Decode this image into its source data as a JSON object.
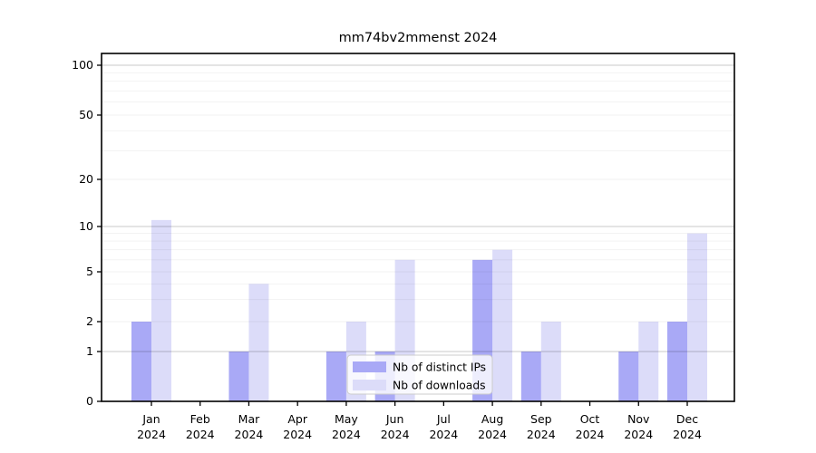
{
  "chart_data": {
    "type": "bar",
    "title": "mm74bv2mmenst 2024",
    "categories": [
      "Jan",
      "Feb",
      "Mar",
      "Apr",
      "May",
      "Jun",
      "Jul",
      "Aug",
      "Sep",
      "Oct",
      "Nov",
      "Dec"
    ],
    "x_tick_second_line": "2024",
    "series": [
      {
        "name": "Nb of distinct IPs",
        "color": "#a9a9f6",
        "values": [
          2,
          0,
          1,
          0,
          1,
          1,
          0,
          6,
          1,
          0,
          1,
          2
        ]
      },
      {
        "name": "Nb of downloads",
        "color": "#dcdcf9",
        "values": [
          11,
          0,
          4,
          0,
          2,
          6,
          0,
          7,
          2,
          0,
          2,
          9
        ]
      }
    ],
    "y_axis": {
      "scale": "log-like (symlog, linear below 1)",
      "tick_labels": [
        "100",
        "50",
        "20",
        "10",
        "5",
        "2",
        "1",
        "0"
      ],
      "tick_values": [
        100,
        50,
        20,
        10,
        5,
        2,
        1,
        0
      ],
      "minor_grid_values": [
        2,
        3,
        4,
        5,
        6,
        7,
        8,
        9,
        20,
        30,
        40,
        50,
        60,
        70,
        80,
        90
      ],
      "major_grid_values": [
        1,
        10,
        100
      ],
      "range": [
        0,
        120
      ]
    },
    "legend": {
      "position": "lower center",
      "entries": [
        "Nb of distinct IPs",
        "Nb of downloads"
      ]
    },
    "grid": true,
    "colors": {
      "bar_distinct_ips": "#a9a9f6",
      "bar_downloads": "#dcdcf9",
      "axis": "#000000",
      "major_grid": "#c9c9c9",
      "minor_grid": "#efefef",
      "legend_border": "#cccccc",
      "background": "#ffffff"
    }
  }
}
